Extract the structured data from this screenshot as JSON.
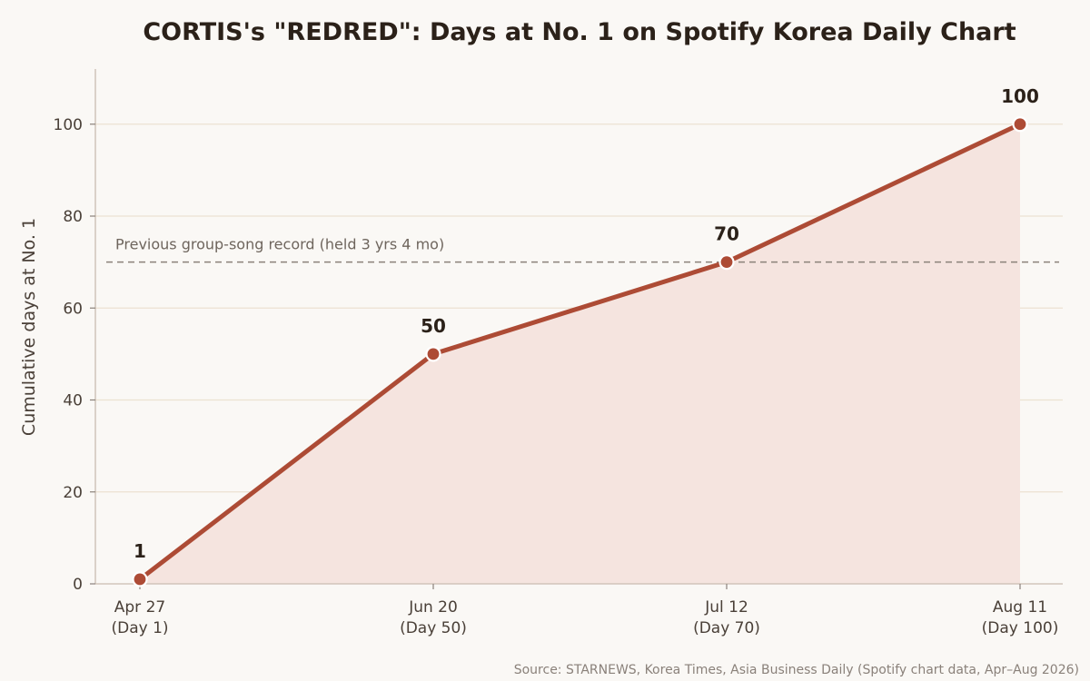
{
  "chart_data": {
    "type": "line",
    "title": "CORTIS's \"REDRED\": Days at No. 1 on Spotify Korea Daily Chart",
    "ylabel": "Cumulative days at No. 1",
    "xlabel": "",
    "ylim": [
      0,
      112
    ],
    "yticks": [
      0,
      20,
      40,
      60,
      80,
      100
    ],
    "grid": "horizontal",
    "area_fill": true,
    "x": [
      {
        "label_line1": "Apr 27",
        "label_line2": "(Day 1)"
      },
      {
        "label_line1": "Jun 20",
        "label_line2": "(Day 50)"
      },
      {
        "label_line1": "Jul 12",
        "label_line2": "(Day 70)"
      },
      {
        "label_line1": "Aug 11",
        "label_line2": "(Day 100)"
      }
    ],
    "series": [
      {
        "values": [
          1,
          50,
          70,
          100
        ],
        "data_labels": [
          "1",
          "50",
          "70",
          "100"
        ]
      }
    ],
    "reference_line": {
      "value": 70,
      "label": "Previous group-song record (held 3 yrs 4 mo)"
    },
    "source": "Source: STARNEWS, Korea Times, Asia Business Daily (Spotify chart data, Apr–Aug 2026)",
    "colors": {
      "line": "#ad4b35",
      "area": "#f5e4df",
      "grid": "#ece2d2",
      "reference": "#8a817a",
      "background": "#faf8f5"
    }
  }
}
